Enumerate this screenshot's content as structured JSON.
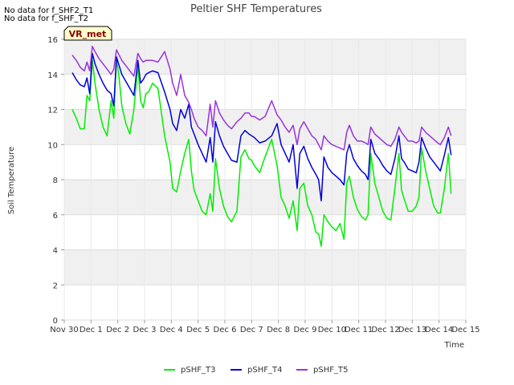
{
  "notes": [
    "No data for f_SHF2_T1",
    "No data for f_SHF_T2"
  ],
  "badge": "VR_met",
  "chart_data": {
    "type": "line",
    "title": "Peltier SHF Temperatures",
    "xlabel": "Time",
    "ylabel": "Soil Temperature",
    "xlim": [
      0,
      15
    ],
    "ylim": [
      0,
      16
    ],
    "x_ticks": [
      0,
      1,
      2,
      3,
      4,
      5,
      6,
      7,
      8,
      9,
      10,
      11,
      12,
      13,
      14,
      15
    ],
    "x_tick_labels": [
      "Nov 30",
      "Dec 1",
      "Dec 2",
      "Dec 3",
      "Dec 4",
      "Dec 5",
      "Dec 6",
      "Dec 7",
      "Dec 8",
      "Dec 9",
      "Dec 10",
      "Dec 11",
      "Dec 12",
      "Dec 13",
      "Dec 14",
      "Dec 15"
    ],
    "y_ticks": [
      0,
      2,
      4,
      6,
      8,
      10,
      12,
      14,
      16
    ],
    "y_tick_labels": [
      "0",
      "2",
      "4",
      "6",
      "8",
      "10",
      "12",
      "14",
      "16"
    ],
    "grid": true,
    "legend_position": "bottom",
    "series": [
      {
        "name": "pSHF_T3",
        "color": "#00ee00",
        "x": [
          0.3,
          0.45,
          0.6,
          0.75,
          0.85,
          0.95,
          1.05,
          1.15,
          1.3,
          1.45,
          1.6,
          1.75,
          1.85,
          1.95,
          2.05,
          2.15,
          2.3,
          2.45,
          2.6,
          2.75,
          2.85,
          2.95,
          3.05,
          3.15,
          3.3,
          3.5,
          3.75,
          3.95,
          4.05,
          4.2,
          4.35,
          4.5,
          4.65,
          4.75,
          4.85,
          5.0,
          5.15,
          5.3,
          5.45,
          5.55,
          5.65,
          5.8,
          5.95,
          6.1,
          6.25,
          6.45,
          6.6,
          6.75,
          6.9,
          7.0,
          7.1,
          7.3,
          7.5,
          7.75,
          7.95,
          8.1,
          8.25,
          8.4,
          8.55,
          8.7,
          8.8,
          8.95,
          9.1,
          9.25,
          9.4,
          9.5,
          9.6,
          9.7,
          9.85,
          10.0,
          10.15,
          10.3,
          10.45,
          10.55,
          10.65,
          10.8,
          10.95,
          11.1,
          11.25,
          11.35,
          11.45,
          11.6,
          11.75,
          11.9,
          12.05,
          12.2,
          12.35,
          12.5,
          12.6,
          12.7,
          12.85,
          13.0,
          13.15,
          13.25,
          13.35,
          13.5,
          13.65,
          13.8,
          13.95,
          14.05,
          14.2,
          14.35,
          14.45
        ],
        "y": [
          12.0,
          11.5,
          10.9,
          10.9,
          12.8,
          12.5,
          14.8,
          13.5,
          12.0,
          11.0,
          10.5,
          12.5,
          11.5,
          14.9,
          13.8,
          12.2,
          11.2,
          10.6,
          12.0,
          14.5,
          12.5,
          12.1,
          12.9,
          13.0,
          13.5,
          13.2,
          10.5,
          9.0,
          7.5,
          7.3,
          8.5,
          9.5,
          10.3,
          8.5,
          7.4,
          6.8,
          6.2,
          6.0,
          7.2,
          6.2,
          9.2,
          7.5,
          6.5,
          5.9,
          5.6,
          6.2,
          9.3,
          9.7,
          9.2,
          9.1,
          8.8,
          8.4,
          9.3,
          10.3,
          8.8,
          7.0,
          6.5,
          5.8,
          6.8,
          5.1,
          7.5,
          7.8,
          6.5,
          6.0,
          5.0,
          4.9,
          4.2,
          6.0,
          5.6,
          5.3,
          5.1,
          5.5,
          4.6,
          7.8,
          8.2,
          7.0,
          6.3,
          5.9,
          5.7,
          6.0,
          9.5,
          7.8,
          7.0,
          6.2,
          5.8,
          5.7,
          7.5,
          9.5,
          7.4,
          6.9,
          6.2,
          6.2,
          6.5,
          7.0,
          9.8,
          8.5,
          7.5,
          6.5,
          6.1,
          6.1,
          7.5,
          9.5,
          7.2
        ]
      },
      {
        "name": "pSHF_T4",
        "color": "#0000dd",
        "x": [
          0.3,
          0.45,
          0.6,
          0.75,
          0.85,
          0.95,
          1.05,
          1.15,
          1.3,
          1.45,
          1.6,
          1.75,
          1.85,
          1.95,
          2.05,
          2.15,
          2.3,
          2.45,
          2.6,
          2.75,
          2.85,
          2.95,
          3.05,
          3.15,
          3.3,
          3.5,
          3.75,
          3.95,
          4.05,
          4.2,
          4.35,
          4.5,
          4.65,
          4.75,
          4.85,
          5.0,
          5.15,
          5.3,
          5.45,
          5.55,
          5.65,
          5.8,
          5.95,
          6.1,
          6.25,
          6.45,
          6.6,
          6.75,
          6.9,
          7.0,
          7.1,
          7.3,
          7.5,
          7.75,
          7.95,
          8.1,
          8.25,
          8.4,
          8.55,
          8.7,
          8.8,
          8.95,
          9.1,
          9.25,
          9.4,
          9.5,
          9.6,
          9.7,
          9.85,
          10.0,
          10.15,
          10.3,
          10.45,
          10.55,
          10.65,
          10.8,
          10.95,
          11.1,
          11.25,
          11.35,
          11.45,
          11.6,
          11.75,
          11.9,
          12.05,
          12.2,
          12.35,
          12.5,
          12.6,
          12.7,
          12.85,
          13.0,
          13.15,
          13.25,
          13.35,
          13.5,
          13.65,
          13.8,
          13.95,
          14.05,
          14.2,
          14.35,
          14.45
        ],
        "y": [
          14.1,
          13.7,
          13.4,
          13.3,
          13.8,
          12.9,
          15.2,
          14.6,
          14.0,
          13.5,
          13.1,
          12.9,
          12.2,
          15.0,
          14.5,
          14.0,
          13.6,
          13.2,
          12.8,
          14.8,
          13.5,
          13.7,
          14.0,
          14.1,
          14.2,
          14.1,
          13.0,
          12.0,
          11.2,
          10.8,
          12.0,
          11.5,
          12.3,
          11.0,
          10.6,
          10.0,
          9.5,
          9.0,
          10.4,
          9.0,
          11.3,
          10.5,
          9.9,
          9.5,
          9.1,
          9.0,
          10.5,
          10.8,
          10.6,
          10.5,
          10.4,
          10.1,
          10.2,
          10.5,
          11.2,
          10.0,
          9.5,
          9.0,
          10.0,
          7.5,
          9.5,
          9.9,
          9.2,
          8.7,
          8.3,
          8.0,
          6.8,
          9.3,
          8.7,
          8.4,
          8.2,
          8.0,
          7.7,
          9.5,
          10.0,
          9.2,
          8.8,
          8.5,
          8.3,
          8.0,
          10.3,
          9.5,
          9.2,
          8.8,
          8.5,
          8.3,
          9.2,
          10.5,
          9.2,
          9.0,
          8.6,
          8.5,
          8.4,
          9.0,
          10.4,
          9.8,
          9.3,
          9.0,
          8.7,
          8.5,
          9.4,
          10.4,
          9.4
        ]
      },
      {
        "name": "pSHF_T5",
        "color": "#9933dd",
        "x": [
          0.3,
          0.45,
          0.6,
          0.75,
          0.85,
          0.95,
          1.05,
          1.15,
          1.3,
          1.45,
          1.6,
          1.75,
          1.85,
          1.95,
          2.05,
          2.15,
          2.3,
          2.45,
          2.6,
          2.75,
          2.85,
          2.95,
          3.05,
          3.15,
          3.3,
          3.5,
          3.75,
          3.95,
          4.05,
          4.2,
          4.35,
          4.5,
          4.65,
          4.75,
          4.85,
          5.0,
          5.15,
          5.3,
          5.45,
          5.55,
          5.65,
          5.8,
          5.95,
          6.1,
          6.25,
          6.45,
          6.6,
          6.75,
          6.9,
          7.0,
          7.1,
          7.3,
          7.5,
          7.75,
          7.95,
          8.1,
          8.25,
          8.4,
          8.55,
          8.7,
          8.8,
          8.95,
          9.1,
          9.25,
          9.4,
          9.5,
          9.6,
          9.7,
          9.85,
          10.0,
          10.15,
          10.3,
          10.45,
          10.55,
          10.65,
          10.8,
          10.95,
          11.1,
          11.25,
          11.35,
          11.45,
          11.6,
          11.75,
          11.9,
          12.05,
          12.2,
          12.35,
          12.5,
          12.6,
          12.7,
          12.85,
          13.0,
          13.15,
          13.25,
          13.35,
          13.5,
          13.65,
          13.8,
          13.95,
          14.05,
          14.2,
          14.35,
          14.45
        ],
        "y": [
          15.1,
          14.8,
          14.4,
          14.2,
          14.7,
          14.2,
          15.6,
          15.3,
          14.9,
          14.6,
          14.3,
          14.0,
          14.3,
          15.4,
          15.1,
          14.8,
          14.5,
          14.2,
          13.9,
          15.2,
          14.9,
          14.7,
          14.8,
          14.8,
          14.8,
          14.7,
          15.3,
          14.3,
          13.5,
          12.8,
          14.0,
          12.8,
          12.4,
          12.0,
          11.5,
          11.0,
          10.8,
          10.5,
          12.3,
          11.0,
          12.5,
          11.8,
          11.4,
          11.1,
          10.9,
          11.3,
          11.5,
          11.8,
          11.8,
          11.6,
          11.6,
          11.4,
          11.6,
          12.5,
          11.7,
          11.4,
          11.0,
          10.7,
          11.1,
          10.0,
          10.9,
          11.3,
          10.9,
          10.5,
          10.3,
          10.0,
          9.7,
          10.5,
          10.2,
          10.0,
          9.9,
          9.8,
          9.7,
          10.7,
          11.1,
          10.5,
          10.2,
          10.2,
          10.1,
          10.0,
          11.0,
          10.6,
          10.4,
          10.2,
          10.0,
          9.9,
          10.3,
          11.0,
          10.7,
          10.5,
          10.2,
          10.2,
          10.1,
          10.2,
          11.0,
          10.7,
          10.5,
          10.3,
          10.1,
          10.0,
          10.4,
          11.0,
          10.5
        ]
      }
    ]
  }
}
